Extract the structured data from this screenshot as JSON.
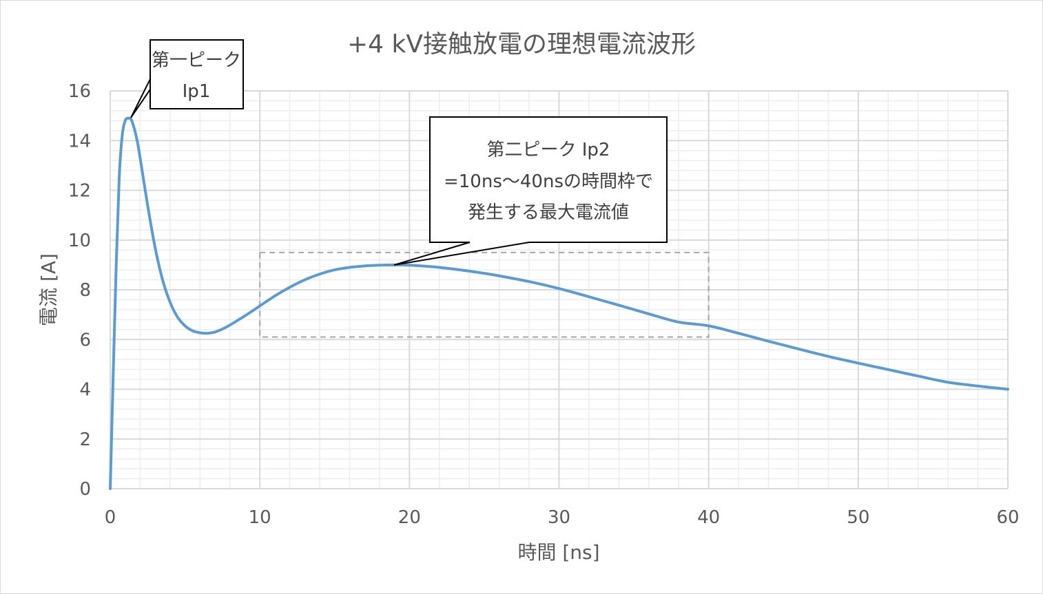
{
  "chart_data": {
    "type": "line",
    "title": "+4 kV接触放電の理想電流波形",
    "xlabel": "時間 [ns]",
    "ylabel": "電流 [A]",
    "xlim": [
      0,
      60
    ],
    "ylim": [
      0,
      16
    ],
    "x_ticks": [
      "0",
      "10",
      "20",
      "30",
      "40",
      "50",
      "60"
    ],
    "y_ticks": [
      "0",
      "2",
      "4",
      "6",
      "8",
      "10",
      "12",
      "14",
      "16"
    ],
    "grid": true,
    "legend": "none",
    "series": [
      {
        "color": "#5b9bd5",
        "x": [
          0,
          0.2,
          0.4,
          0.6,
          0.8,
          1.0,
          1.2,
          1.4,
          1.6,
          1.8,
          2.0,
          2.5,
          3,
          3.5,
          4,
          4.5,
          5,
          5.5,
          6,
          6.5,
          7,
          7.5,
          8,
          9,
          10,
          11,
          12,
          13,
          14,
          15,
          16,
          17,
          18,
          19,
          20,
          21,
          22,
          23,
          24,
          25,
          26,
          28,
          30,
          32,
          34,
          36,
          38,
          40,
          42,
          44,
          46,
          48,
          50,
          52,
          54,
          56,
          58,
          60
        ],
        "values": [
          0,
          4.6,
          9.0,
          12.5,
          14.2,
          14.8,
          14.9,
          14.85,
          14.5,
          14.0,
          13.3,
          11.4,
          9.7,
          8.4,
          7.5,
          6.9,
          6.55,
          6.35,
          6.27,
          6.25,
          6.3,
          6.42,
          6.58,
          6.95,
          7.35,
          7.75,
          8.1,
          8.4,
          8.63,
          8.8,
          8.9,
          8.96,
          8.99,
          9.0,
          8.99,
          8.95,
          8.9,
          8.83,
          8.75,
          8.66,
          8.56,
          8.33,
          8.05,
          7.72,
          7.38,
          7.03,
          6.7,
          6.55,
          6.25,
          5.93,
          5.62,
          5.32,
          5.05,
          4.79,
          4.53,
          4.28,
          4.13,
          4.0
        ]
      }
    ],
    "annotations": [
      {
        "id": "first-peak",
        "lines": [
          "第一ピーク",
          "Ip1"
        ],
        "point": [
          1.3,
          14.9
        ]
      },
      {
        "id": "second-peak",
        "lines": [
          "第二ピーク Ip2",
          "=10ns～40nsの時間枠で",
          "発生する最大電流値"
        ],
        "point": [
          19,
          9.0
        ]
      }
    ],
    "highlight_range": {
      "x": [
        10,
        40
      ],
      "y": [
        6.1,
        9.5
      ]
    }
  }
}
